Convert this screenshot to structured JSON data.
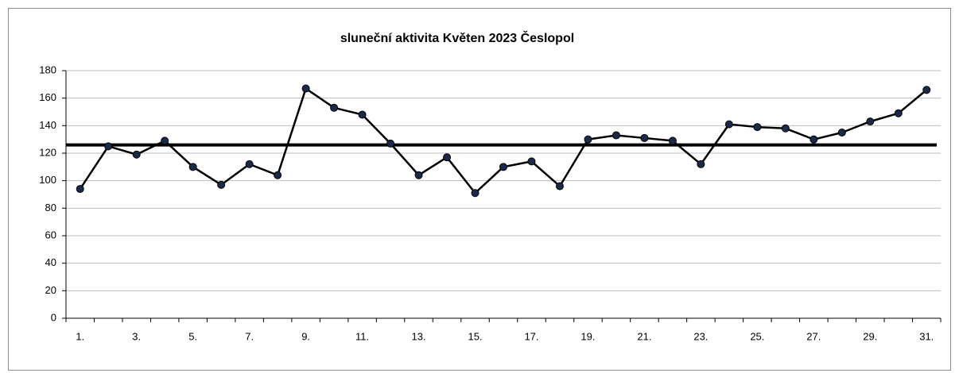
{
  "chart_data": {
    "type": "line",
    "title": "sluneční aktivita Květen 2023 Česlopol",
    "categories": [
      "1.",
      null,
      "3.",
      null,
      "5.",
      null,
      "7.",
      null,
      "9.",
      null,
      "11.",
      null,
      "13.",
      null,
      "15.",
      null,
      "17.",
      null,
      "19.",
      null,
      "21.",
      null,
      "23.",
      null,
      "25.",
      null,
      "27.",
      null,
      "29.",
      null,
      "31."
    ],
    "values": [
      94,
      125,
      119,
      129,
      110,
      97,
      112,
      104,
      167,
      153,
      148,
      127,
      104,
      117,
      91,
      110,
      114,
      96,
      130,
      133,
      131,
      129,
      112,
      141,
      139,
      138,
      130,
      135,
      143,
      149,
      166
    ],
    "color": "#000000",
    "marker_color": "#1c2a4a",
    "reference_value": 126,
    "reference_color": "#000000",
    "ylim": [
      0,
      180
    ],
    "yticks": [
      0,
      20,
      40,
      60,
      80,
      100,
      120,
      140,
      160,
      180
    ],
    "grid": true
  }
}
